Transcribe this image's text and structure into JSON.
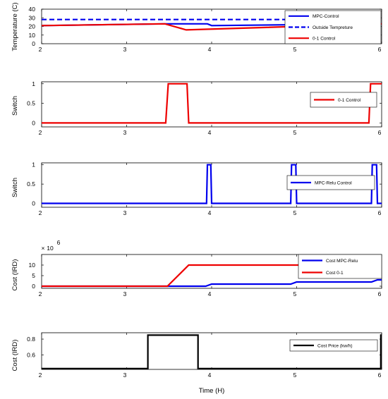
{
  "figure": {
    "xlabel": "Time (H)"
  },
  "chart_data": [
    {
      "type": "line",
      "ylabel": "Temperature (C)",
      "xlim": [
        2,
        6
      ],
      "ylim": [
        0,
        40
      ],
      "xticks": [
        "2",
        "3",
        "4",
        "5",
        "6"
      ],
      "yticks": [
        "0",
        "10",
        "20",
        "30",
        "40"
      ],
      "series": [
        {
          "name": "MPC-Control",
          "color": "#0000ee",
          "dash": "solid",
          "x": [
            2,
            3.45,
            3.95,
            4.0,
            6
          ],
          "y": [
            21,
            23,
            23,
            21,
            23
          ]
        },
        {
          "name": "Outside Tempreture",
          "color": "#0000ee",
          "dash": "dashed",
          "x": [
            2,
            6
          ],
          "y": [
            28,
            28
          ]
        },
        {
          "name": "0-1 Control",
          "color": "#ee0000",
          "dash": "solid",
          "x": [
            2,
            3.45,
            3.7,
            6
          ],
          "y": [
            21,
            23,
            16,
            23
          ]
        }
      ]
    },
    {
      "type": "line",
      "ylabel": "Switch",
      "xlim": [
        2,
        6
      ],
      "ylim": [
        -0.1,
        1.05
      ],
      "xticks": [
        "2",
        "3",
        "4",
        "5",
        "6"
      ],
      "yticks": [
        "0",
        "0.5",
        "1"
      ],
      "series": [
        {
          "name": "0-1 Control",
          "color": "#ee0000",
          "dash": "solid",
          "x": [
            2,
            3.46,
            3.49,
            3.71,
            3.73,
            5.85,
            5.87,
            6
          ],
          "y": [
            0,
            0,
            1,
            1,
            0,
            0,
            1,
            1
          ]
        }
      ]
    },
    {
      "type": "line",
      "ylabel": "Switch",
      "xlim": [
        2,
        6
      ],
      "ylim": [
        -0.1,
        1.05
      ],
      "xticks": [
        "2",
        "3",
        "4",
        "5",
        "6"
      ],
      "yticks": [
        "0",
        "0.5",
        "1"
      ],
      "series": [
        {
          "name": "MPC-Relu Control",
          "color": "#0000ee",
          "dash": "solid",
          "x": [
            2,
            3.94,
            3.95,
            3.99,
            4.0,
            4.93,
            4.94,
            4.99,
            5.0,
            5.88,
            5.89,
            5.94,
            5.95,
            6
          ],
          "y": [
            0,
            0,
            1,
            1,
            0,
            0,
            1,
            1,
            0,
            0,
            1,
            1,
            0,
            0
          ]
        }
      ]
    },
    {
      "type": "line",
      "ylabel": "Cost (IRD)",
      "exponent_base": "10",
      "exponent_power": "6",
      "xlim": [
        2,
        6
      ],
      "ylim": [
        -1,
        15
      ],
      "xticks": [
        "2",
        "3",
        "4",
        "5",
        "6"
      ],
      "yticks": [
        "0",
        "5",
        "10"
      ],
      "series": [
        {
          "name": "Cost  MPC-Relu",
          "color": "#0000ee",
          "dash": "solid",
          "x": [
            2,
            3.93,
            4.0,
            4.93,
            5.0,
            5.88,
            5.95,
            6
          ],
          "y": [
            0,
            0,
            1,
            1,
            2,
            2,
            3,
            3
          ]
        },
        {
          "name": "Cost  0-1",
          "color": "#ee0000",
          "dash": "solid",
          "x": [
            2,
            3.48,
            3.73,
            5.86,
            6
          ],
          "y": [
            0,
            0,
            10,
            10,
            13
          ]
        }
      ]
    },
    {
      "type": "line",
      "ylabel": "Cost (IRD)",
      "xlim": [
        2,
        6
      ],
      "ylim": [
        0.42,
        0.88
      ],
      "xticks": [
        "2",
        "3",
        "4",
        "5",
        "6"
      ],
      "yticks": [
        "0.6",
        "0.8"
      ],
      "series": [
        {
          "name": "Cost Price (kw/h)",
          "color": "#000000",
          "dash": "solid",
          "x": [
            2,
            3.25,
            3.25,
            3.84,
            3.84,
            5.99,
            5.99,
            6
          ],
          "y": [
            0.43,
            0.43,
            0.85,
            0.85,
            0.43,
            0.43,
            0.85,
            0.85
          ]
        }
      ]
    }
  ]
}
